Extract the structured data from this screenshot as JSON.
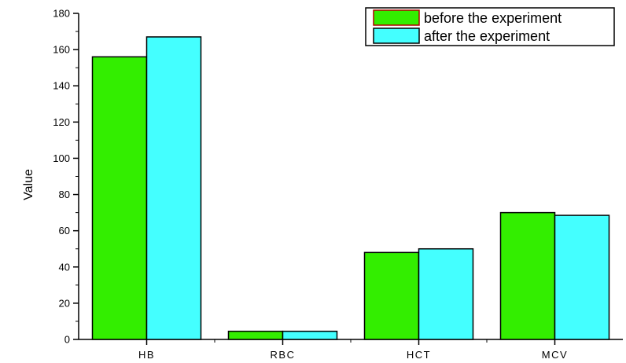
{
  "chart_data": {
    "type": "bar",
    "categories": [
      "HB",
      "RBC",
      "HCT",
      "MCV"
    ],
    "series": [
      {
        "name": "before the experiment",
        "values": [
          156,
          4.5,
          48,
          70
        ],
        "color": "#33ee00"
      },
      {
        "name": "after the experiment",
        "values": [
          167,
          4.5,
          50,
          68.5
        ],
        "color": "#44ffff"
      }
    ],
    "xlabel": "",
    "ylabel": "Value",
    "ylim": [
      0,
      180
    ],
    "yticks": [
      0,
      20,
      40,
      60,
      80,
      100,
      120,
      140,
      160,
      180
    ],
    "grid": false,
    "legend_position": "top-right"
  }
}
